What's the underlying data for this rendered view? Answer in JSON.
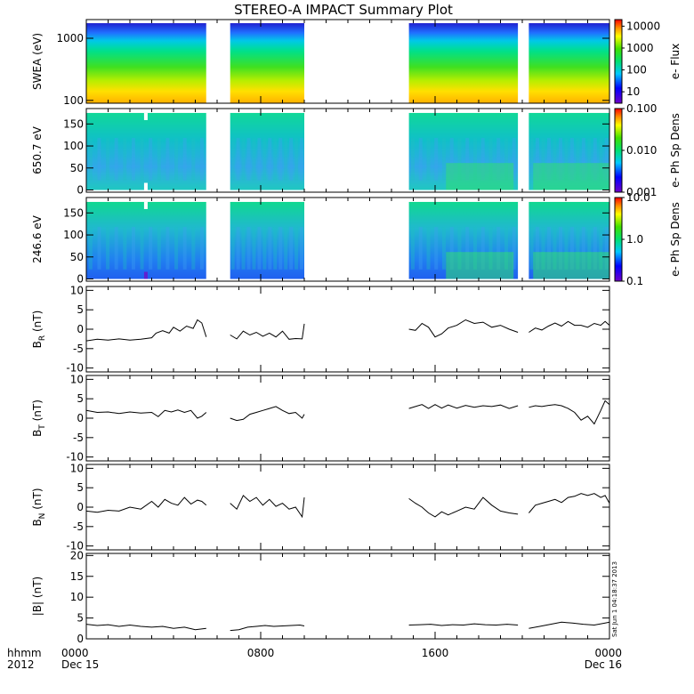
{
  "title": "STEREO-A IMPACT Summary Plot",
  "footer": {
    "left_top": "hhmm",
    "left_bottom": "2012",
    "ticks": [
      {
        "t": 0,
        "label": "0000",
        "sub": "Dec 15"
      },
      {
        "t": 8,
        "label": "0800",
        "sub": ""
      },
      {
        "t": 16,
        "label": "1600",
        "sub": ""
      },
      {
        "t": 24,
        "label": "0000",
        "sub": "Dec 16"
      }
    ],
    "timestamp": "Sat Jun 1 04:18:37 2013"
  },
  "colors": {
    "axis": "#000000",
    "line": "#000000"
  },
  "chart_data": [
    {
      "type": "heatmap",
      "ylabel": "SWEA (eV)",
      "yscale": "log",
      "ylim": [
        90,
        2000
      ],
      "yticks": [
        {
          "v": 100,
          "label": "100"
        },
        {
          "v": 1000,
          "label": "1000"
        }
      ],
      "colorbar_label": "e- Flux",
      "colorbar_scale": "log",
      "colorbar_range": [
        3,
        20000
      ],
      "colorbar_ticks": [
        {
          "v": 10,
          "label": "10"
        },
        {
          "v": 100,
          "label": "100"
        },
        {
          "v": 1000,
          "label": "1000"
        },
        {
          "v": 10000,
          "label": "10000"
        }
      ],
      "data_ylim": [
        90,
        1750
      ],
      "data_intervals": [
        [
          0,
          5.5
        ],
        [
          6.6,
          10.0
        ],
        [
          14.8,
          19.8
        ],
        [
          20.3,
          24.0
        ]
      ]
    },
    {
      "type": "heatmap",
      "ylabel": "650.7 eV",
      "ylim": [
        -5,
        185
      ],
      "yticks": [
        {
          "v": 0,
          "label": "0"
        },
        {
          "v": 50,
          "label": "50"
        },
        {
          "v": 100,
          "label": "100"
        },
        {
          "v": 150,
          "label": "150"
        }
      ],
      "colorbar_label": "e- Ph Sp Dens",
      "colorbar_scale": "log",
      "colorbar_range": [
        0.001,
        0.1
      ],
      "colorbar_ticks": [
        {
          "v": 0.001,
          "label": "0.001"
        },
        {
          "v": 0.01,
          "label": "0.010"
        },
        {
          "v": 0.1,
          "label": "0.100"
        }
      ],
      "data_ylim": [
        0,
        175
      ],
      "data_intervals": [
        [
          0,
          5.5
        ],
        [
          6.6,
          10.0
        ],
        [
          14.8,
          19.8
        ],
        [
          20.3,
          24.0
        ]
      ]
    },
    {
      "type": "heatmap",
      "ylabel": "246.6 eV",
      "ylim": [
        -5,
        185
      ],
      "yticks": [
        {
          "v": 0,
          "label": "0"
        },
        {
          "v": 50,
          "label": "50"
        },
        {
          "v": 100,
          "label": "100"
        },
        {
          "v": 150,
          "label": "150"
        }
      ],
      "colorbar_label": "e- Ph Sp Dens",
      "colorbar_scale": "log",
      "colorbar_range": [
        0.1,
        10
      ],
      "colorbar_ticks": [
        {
          "v": 0.1,
          "label": "0.1"
        },
        {
          "v": 1,
          "label": "1.0"
        },
        {
          "v": 10,
          "label": "10.0"
        }
      ],
      "data_ylim": [
        0,
        175
      ],
      "data_intervals": [
        [
          0,
          5.5
        ],
        [
          6.6,
          10.0
        ],
        [
          14.8,
          19.8
        ],
        [
          20.3,
          24.0
        ]
      ]
    },
    {
      "type": "line",
      "ylabel": "B",
      "ylabel_sub": "R",
      "ylabel_unit": "(nT)",
      "ylim": [
        -11,
        11
      ],
      "yticks": [
        {
          "v": -10,
          "label": "-10"
        },
        {
          "v": -5,
          "label": "-5"
        },
        {
          "v": 0,
          "label": "0"
        },
        {
          "v": 5,
          "label": "5"
        },
        {
          "v": 10,
          "label": "10"
        }
      ],
      "segments": [
        {
          "x": [
            0,
            0.5,
            1,
            1.5,
            2,
            2.5,
            3,
            3.2,
            3.5,
            3.8,
            4,
            4.3,
            4.6,
            4.9,
            5.1,
            5.3,
            5.5
          ],
          "y": [
            -3,
            -2.6,
            -2.8,
            -2.5,
            -2.8,
            -2.6,
            -2.2,
            -1,
            -0.4,
            -1,
            0.5,
            -0.5,
            0.8,
            0.2,
            2.4,
            1.6,
            -2
          ]
        },
        {
          "x": [
            6.6,
            6.9,
            7.2,
            7.5,
            7.8,
            8.1,
            8.4,
            8.7,
            9,
            9.3,
            9.6,
            9.9,
            10.0
          ],
          "y": [
            -1.5,
            -2.5,
            -0.5,
            -1.5,
            -0.8,
            -1.8,
            -1,
            -2,
            -0.5,
            -2.6,
            -2.4,
            -2.5,
            1.4
          ]
        },
        {
          "x": [
            14.8,
            15.1,
            15.4,
            15.7,
            16,
            16.3,
            16.6,
            17,
            17.4,
            17.8,
            18.2,
            18.6,
            19,
            19.4,
            19.8
          ],
          "y": [
            0,
            -0.3,
            1.5,
            0.5,
            -2,
            -1.2,
            0.3,
            1,
            2.4,
            1.5,
            1.8,
            0.5,
            1,
            0,
            -0.8
          ]
        },
        {
          "x": [
            20.3,
            20.6,
            20.9,
            21.2,
            21.5,
            21.8,
            22.1,
            22.4,
            22.7,
            23,
            23.3,
            23.6,
            23.8,
            24.0
          ],
          "y": [
            -0.8,
            0.3,
            -0.2,
            0.8,
            1.6,
            0.8,
            2,
            1,
            1,
            0.5,
            1.5,
            1,
            2,
            1
          ]
        }
      ]
    },
    {
      "type": "line",
      "ylabel": "B",
      "ylabel_sub": "T",
      "ylabel_unit": "(nT)",
      "ylim": [
        -11,
        11
      ],
      "yticks": [
        {
          "v": -10,
          "label": "-10"
        },
        {
          "v": -5,
          "label": "-5"
        },
        {
          "v": 0,
          "label": "0"
        },
        {
          "v": 5,
          "label": "5"
        },
        {
          "v": 10,
          "label": "10"
        }
      ],
      "segments": [
        {
          "x": [
            0,
            0.5,
            1,
            1.5,
            2,
            2.5,
            3,
            3.3,
            3.6,
            3.9,
            4.2,
            4.5,
            4.8,
            5.1,
            5.3,
            5.5
          ],
          "y": [
            2,
            1.5,
            1.6,
            1.2,
            1.6,
            1.3,
            1.5,
            0.4,
            2,
            1.6,
            2.1,
            1.5,
            2,
            0,
            0.5,
            1.5
          ]
        },
        {
          "x": [
            6.6,
            6.9,
            7.2,
            7.5,
            7.8,
            8.1,
            8.4,
            8.7,
            9,
            9.3,
            9.6,
            9.9,
            10.0
          ],
          "y": [
            0,
            -0.6,
            -0.3,
            1,
            1.5,
            2,
            2.5,
            3,
            2,
            1.2,
            1.5,
            0,
            1
          ]
        },
        {
          "x": [
            14.8,
            15.1,
            15.4,
            15.7,
            16,
            16.3,
            16.6,
            17,
            17.4,
            17.8,
            18.2,
            18.6,
            19,
            19.4,
            19.8
          ],
          "y": [
            2.5,
            3,
            3.5,
            2.5,
            3.5,
            2.6,
            3.4,
            2.6,
            3.3,
            2.8,
            3.2,
            3,
            3.4,
            2.5,
            3.2
          ]
        },
        {
          "x": [
            20.3,
            20.6,
            20.9,
            21.2,
            21.5,
            21.8,
            22.1,
            22.4,
            22.7,
            23,
            23.3,
            23.6,
            23.8,
            24.0
          ],
          "y": [
            2.8,
            3.2,
            3,
            3.3,
            3.5,
            3.2,
            2.5,
            1.5,
            -0.5,
            0.5,
            -1.5,
            2,
            4.5,
            3.5
          ]
        }
      ]
    },
    {
      "type": "line",
      "ylabel": "B",
      "ylabel_sub": "N",
      "ylabel_unit": "(nT)",
      "ylim": [
        -11,
        11
      ],
      "yticks": [
        {
          "v": -10,
          "label": "-10"
        },
        {
          "v": -5,
          "label": "-5"
        },
        {
          "v": 0,
          "label": "0"
        },
        {
          "v": 5,
          "label": "5"
        },
        {
          "v": 10,
          "label": "10"
        }
      ],
      "segments": [
        {
          "x": [
            0,
            0.5,
            1,
            1.5,
            2,
            2.5,
            3,
            3.3,
            3.6,
            3.9,
            4.2,
            4.5,
            4.8,
            5.1,
            5.3,
            5.5
          ],
          "y": [
            -1,
            -1.3,
            -0.8,
            -1,
            0,
            -0.5,
            1.5,
            0,
            2,
            1,
            0.5,
            2.5,
            0.8,
            1.8,
            1.5,
            0.5
          ]
        },
        {
          "x": [
            6.6,
            6.9,
            7.2,
            7.5,
            7.8,
            8.1,
            8.4,
            8.7,
            9,
            9.3,
            9.6,
            9.9,
            10.0
          ],
          "y": [
            1,
            -0.5,
            3,
            1.5,
            2.5,
            0.5,
            2,
            0.2,
            1,
            -0.5,
            0,
            -2.5,
            2.5
          ]
        },
        {
          "x": [
            14.8,
            15.1,
            15.4,
            15.7,
            16,
            16.3,
            16.6,
            17,
            17.4,
            17.8,
            18.2,
            18.6,
            19,
            19.4,
            19.8
          ],
          "y": [
            2.2,
            1,
            0,
            -1.5,
            -2.5,
            -1.2,
            -2,
            -1,
            0,
            -0.5,
            2.5,
            0.5,
            -1,
            -1.5,
            -1.8
          ]
        },
        {
          "x": [
            20.3,
            20.6,
            20.9,
            21.2,
            21.5,
            21.8,
            22.1,
            22.4,
            22.7,
            23,
            23.3,
            23.6,
            23.8,
            24.0
          ],
          "y": [
            -1.5,
            0.5,
            1,
            1.5,
            2,
            1.2,
            2.5,
            2.8,
            3.5,
            3,
            3.5,
            2.5,
            3,
            1
          ]
        }
      ]
    },
    {
      "type": "line",
      "ylabel": "|B| (nT)",
      "ylim": [
        0,
        20.5
      ],
      "yticks": [
        {
          "v": 0,
          "label": "0"
        },
        {
          "v": 5,
          "label": "5"
        },
        {
          "v": 10,
          "label": "10"
        },
        {
          "v": 15,
          "label": "15"
        },
        {
          "v": 20,
          "label": "20"
        }
      ],
      "segments": [
        {
          "x": [
            0,
            0.5,
            1,
            1.5,
            2,
            2.5,
            3,
            3.5,
            4,
            4.5,
            5,
            5.5
          ],
          "y": [
            3.5,
            3.2,
            3.4,
            3,
            3.3,
            3,
            2.8,
            3,
            2.5,
            2.8,
            2.2,
            2.5
          ]
        },
        {
          "x": [
            6.6,
            7,
            7.4,
            7.8,
            8.2,
            8.6,
            9,
            9.4,
            9.8,
            10.0
          ],
          "y": [
            2,
            2.2,
            2.8,
            3,
            3.2,
            3,
            3.1,
            3.2,
            3.3,
            3.1
          ]
        },
        {
          "x": [
            14.8,
            15.3,
            15.8,
            16.3,
            16.8,
            17.3,
            17.8,
            18.3,
            18.8,
            19.3,
            19.8
          ],
          "y": [
            3.3,
            3.4,
            3.5,
            3.2,
            3.4,
            3.3,
            3.6,
            3.4,
            3.3,
            3.5,
            3.3
          ]
        },
        {
          "x": [
            20.3,
            20.8,
            21.3,
            21.8,
            22.3,
            22.8,
            23.3,
            23.8,
            24.0
          ],
          "y": [
            2.5,
            3,
            3.5,
            4,
            3.8,
            3.5,
            3.3,
            3.8,
            4
          ]
        }
      ]
    }
  ]
}
